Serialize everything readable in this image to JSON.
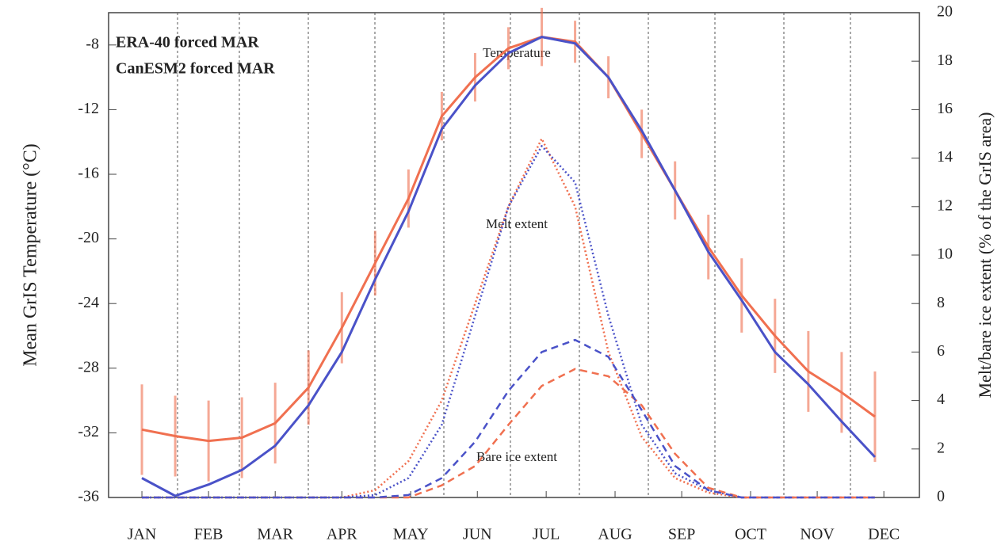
{
  "chart_data": {
    "type": "line",
    "y_label": "Mean GrIS Temperature (°C)",
    "y2_label": "Melt/bare ice extent (% of the GrIS area)",
    "annotations": [
      "Temperature",
      "Melt extent",
      "Bare ice extent"
    ],
    "x": [
      15,
      30,
      45,
      60,
      75,
      90,
      105,
      120,
      135,
      150,
      165,
      180,
      195,
      210,
      225,
      240,
      255,
      270,
      285,
      300,
      315,
      330,
      345
    ],
    "xlim": [
      0,
      365
    ],
    "xticks": [
      {
        "value": 15,
        "label": "JAN"
      },
      {
        "value": 45,
        "label": "FEB"
      },
      {
        "value": 75,
        "label": "MAR"
      },
      {
        "value": 105,
        "label": "APR"
      },
      {
        "value": 136,
        "label": "MAY"
      },
      {
        "value": 166,
        "label": "JUN"
      },
      {
        "value": 197,
        "label": "JUL"
      },
      {
        "value": 228,
        "label": "AUG"
      },
      {
        "value": 258,
        "label": "SEP"
      },
      {
        "value": 289,
        "label": "OCT"
      },
      {
        "value": 319,
        "label": "NOV"
      },
      {
        "value": 349,
        "label": "DEC"
      }
    ],
    "ylim": [
      -36,
      -6
    ],
    "yticks": [
      -36,
      -32,
      -28,
      -24,
      -20,
      -16,
      -12,
      -8
    ],
    "y2lim": [
      0,
      20
    ],
    "y2ticks": [
      0,
      2,
      4,
      6,
      8,
      10,
      12,
      14,
      16,
      18,
      20
    ],
    "series": [
      {
        "name": "ERA-40 forced MAR",
        "color": "#f07050",
        "style": "solid",
        "values": [
          -31.8,
          -32.2,
          -32.5,
          -32.3,
          -31.4,
          -29.2,
          -25.5,
          -21.5,
          -17.5,
          -12.4,
          -10,
          -8.2,
          -7.5,
          -7.8,
          -10,
          -13.5,
          -17,
          -20.5,
          -23.5,
          -26,
          -28.2,
          -29.5,
          -31
        ],
        "errors": [
          2.8,
          2.5,
          2.5,
          2.5,
          2.5,
          2.3,
          2.2,
          2.0,
          1.8,
          1.5,
          1.5,
          1.3,
          1.8,
          1.3,
          1.3,
          1.5,
          1.8,
          2.0,
          2.3,
          2.3,
          2.5,
          2.5,
          2.8
        ]
      },
      {
        "name": "CanESM2 forced MAR",
        "color": "#4a52c8",
        "style": "solid",
        "values": [
          -34.8,
          -35.9,
          -35.2,
          -34.3,
          -32.8,
          -30.3,
          -27,
          -22.5,
          -18.3,
          -13.2,
          -10.5,
          -8.5,
          -7.5,
          -7.9,
          -10,
          -13.3,
          -17,
          -20.8,
          -23.8,
          -27,
          -29,
          -31.3,
          -33.5
        ]
      },
      {
        "color": "#f07050",
        "style": "dotted",
        "axis": "y2",
        "values": [
          0,
          0,
          0,
          0,
          0,
          0,
          0,
          0.3,
          1.5,
          4,
          8,
          12,
          14.8,
          12,
          6,
          2.5,
          0.8,
          0.2,
          0,
          0,
          0,
          0,
          0
        ]
      },
      {
        "color": "#4a52c8",
        "style": "dotted",
        "axis": "y2",
        "values": [
          0,
          0,
          0,
          0,
          0,
          0,
          0,
          0.1,
          0.8,
          3,
          7.5,
          12,
          14.5,
          13,
          7.5,
          3,
          1,
          0.3,
          0,
          0,
          0,
          0,
          0
        ]
      },
      {
        "color": "#f07050",
        "style": "dashed",
        "axis": "y2",
        "values": [
          0,
          0,
          0,
          0,
          0,
          0,
          0,
          0,
          0,
          0.5,
          1.3,
          3,
          4.6,
          5.3,
          5,
          3.8,
          1.8,
          0.4,
          0,
          0,
          0,
          0,
          0
        ]
      },
      {
        "color": "#4a52c8",
        "style": "dashed",
        "axis": "y2",
        "values": [
          0,
          0,
          0,
          0,
          0,
          0,
          0,
          0,
          0.1,
          0.8,
          2.3,
          4.4,
          6,
          6.5,
          5.8,
          3.6,
          1.3,
          0.3,
          0,
          0,
          0,
          0,
          0
        ]
      }
    ]
  }
}
